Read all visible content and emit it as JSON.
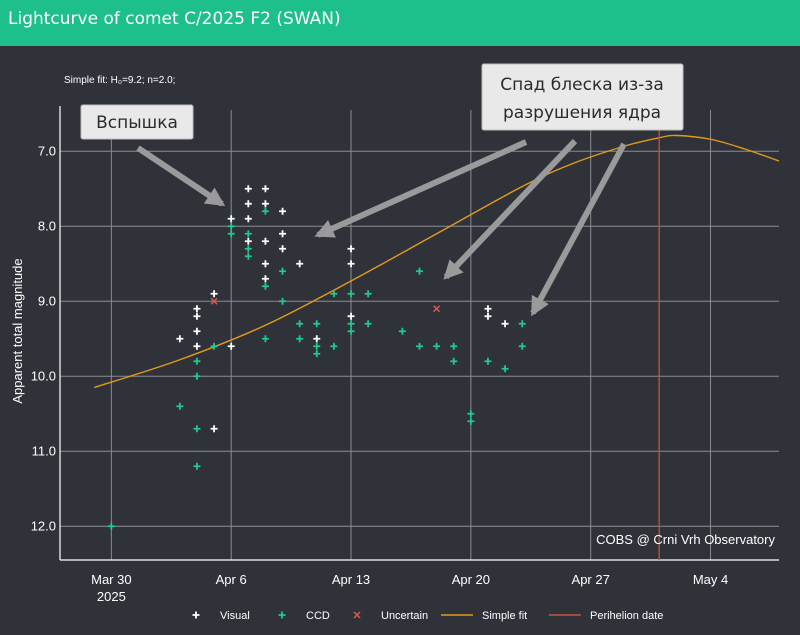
{
  "header": {
    "title": "Lightcurve of comet C/2025 F2 (SWAN)"
  },
  "colors": {
    "header_bg": "#1dbf8a",
    "plot_bg": "#2f3239",
    "visual": "#ffffff",
    "ccd": "#1fc98f",
    "uncertain": "#e0594a",
    "fit": "#e39a1a",
    "perihelion": "#c9523c",
    "grid": "#8a8d91"
  },
  "chart_data": {
    "type": "scatter",
    "title": "Lightcurve of comet C/2025 F2 (SWAN)",
    "subtitle": "Simple fit: H₀=9.2; n=2.0;",
    "ylabel": "Apparent total magnitude",
    "xlabel": "",
    "y_reversed": true,
    "ylim": [
      6.45,
      12.45
    ],
    "xlim": [
      "2025-03-27",
      "2025-05-08"
    ],
    "y_ticks": [
      "7.0",
      "8.0",
      "9.0",
      "10.0",
      "11.0",
      "12.0"
    ],
    "y_tick_values": [
      7,
      8,
      9,
      10,
      11,
      12
    ],
    "x_ticks": [
      {
        "date": "2025-03-30",
        "label": "Mar 30",
        "sublabel": "2025"
      },
      {
        "date": "2025-04-06",
        "label": "Apr 6",
        "sublabel": ""
      },
      {
        "date": "2025-04-13",
        "label": "Apr 13",
        "sublabel": ""
      },
      {
        "date": "2025-04-20",
        "label": "Apr 20",
        "sublabel": ""
      },
      {
        "date": "2025-04-27",
        "label": "Apr 27",
        "sublabel": ""
      },
      {
        "date": "2025-05-04",
        "label": "May 4",
        "sublabel": ""
      }
    ],
    "grid": true,
    "legend_position": "bottom",
    "credit": "COBS @ Crni Vrh Observatory",
    "series": [
      {
        "name": "Visual",
        "marker": "+",
        "points": [
          [
            "2025-04-03",
            9.5
          ],
          [
            "2025-04-04",
            9.1
          ],
          [
            "2025-04-04",
            9.2
          ],
          [
            "2025-04-04",
            9.4
          ],
          [
            "2025-04-04",
            9.6
          ],
          [
            "2025-04-05",
            8.9
          ],
          [
            "2025-04-05",
            10.7
          ],
          [
            "2025-04-06",
            7.9
          ],
          [
            "2025-04-06",
            9.6
          ],
          [
            "2025-04-07",
            7.5
          ],
          [
            "2025-04-07",
            7.7
          ],
          [
            "2025-04-07",
            7.9
          ],
          [
            "2025-04-07",
            8.2
          ],
          [
            "2025-04-08",
            8.5
          ],
          [
            "2025-04-08",
            7.7
          ],
          [
            "2025-04-08",
            7.5
          ],
          [
            "2025-04-08",
            8.2
          ],
          [
            "2025-04-08",
            8.7
          ],
          [
            "2025-04-09",
            7.8
          ],
          [
            "2025-04-09",
            8.1
          ],
          [
            "2025-04-09",
            8.3
          ],
          [
            "2025-04-10",
            8.5
          ],
          [
            "2025-04-11",
            9.5
          ],
          [
            "2025-04-13",
            8.3
          ],
          [
            "2025-04-13",
            8.5
          ],
          [
            "2025-04-13",
            9.2
          ],
          [
            "2025-04-21",
            9.1
          ],
          [
            "2025-04-21",
            9.2
          ],
          [
            "2025-04-22",
            9.3
          ]
        ]
      },
      {
        "name": "CCD",
        "marker": "+",
        "points": [
          [
            "2025-03-30",
            12.0
          ],
          [
            "2025-04-03",
            10.4
          ],
          [
            "2025-04-04",
            10.0
          ],
          [
            "2025-04-04",
            10.7
          ],
          [
            "2025-04-04",
            11.2
          ],
          [
            "2025-04-04",
            9.8
          ],
          [
            "2025-04-05",
            9.6
          ],
          [
            "2025-04-06",
            8.0
          ],
          [
            "2025-04-06",
            8.1
          ],
          [
            "2025-04-07",
            8.3
          ],
          [
            "2025-04-07",
            8.4
          ],
          [
            "2025-04-07",
            8.1
          ],
          [
            "2025-04-08",
            7.8
          ],
          [
            "2025-04-08",
            8.8
          ],
          [
            "2025-04-08",
            9.5
          ],
          [
            "2025-04-09",
            8.6
          ],
          [
            "2025-04-09",
            9.0
          ],
          [
            "2025-04-10",
            9.3
          ],
          [
            "2025-04-10",
            9.5
          ],
          [
            "2025-04-11",
            9.3
          ],
          [
            "2025-04-11",
            9.6
          ],
          [
            "2025-04-11",
            9.7
          ],
          [
            "2025-04-12",
            8.9
          ],
          [
            "2025-04-12",
            9.6
          ],
          [
            "2025-04-13",
            8.9
          ],
          [
            "2025-04-13",
            9.3
          ],
          [
            "2025-04-13",
            9.4
          ],
          [
            "2025-04-14",
            9.3
          ],
          [
            "2025-04-14",
            8.9
          ],
          [
            "2025-04-16",
            9.4
          ],
          [
            "2025-04-17",
            8.6
          ],
          [
            "2025-04-17",
            9.6
          ],
          [
            "2025-04-18",
            9.6
          ],
          [
            "2025-04-19",
            9.6
          ],
          [
            "2025-04-19",
            9.8
          ],
          [
            "2025-04-20",
            10.5
          ],
          [
            "2025-04-20",
            10.6
          ],
          [
            "2025-04-21",
            9.8
          ],
          [
            "2025-04-22",
            9.9
          ],
          [
            "2025-04-23",
            9.3
          ],
          [
            "2025-04-23",
            9.6
          ]
        ]
      },
      {
        "name": "Uncertain",
        "marker": "x",
        "points": [
          [
            "2025-04-05",
            9.0
          ],
          [
            "2025-04-18",
            9.1
          ]
        ]
      },
      {
        "name": "Simple fit",
        "marker": "line",
        "points": [
          [
            "2025-03-29",
            10.15
          ],
          [
            "2025-04-03",
            9.78
          ],
          [
            "2025-04-08",
            9.32
          ],
          [
            "2025-04-13",
            8.73
          ],
          [
            "2025-04-18",
            8.1
          ],
          [
            "2025-04-23",
            7.47
          ],
          [
            "2025-04-26",
            7.16
          ],
          [
            "2025-04-29",
            6.93
          ],
          [
            "2025-05-01",
            6.82
          ],
          [
            "2025-05-02",
            6.79
          ],
          [
            "2025-05-04",
            6.84
          ],
          [
            "2025-05-06",
            6.97
          ],
          [
            "2025-05-08",
            7.13
          ]
        ]
      },
      {
        "name": "Perihelion date",
        "marker": "vline",
        "points": [
          [
            "2025-05-01",
            null
          ]
        ]
      }
    ]
  },
  "annotations": [
    {
      "id": "flare",
      "lines": [
        "Вспышка"
      ]
    },
    {
      "id": "decline",
      "lines": [
        "Спад блеска из-за",
        "разрушения ядра"
      ]
    }
  ]
}
